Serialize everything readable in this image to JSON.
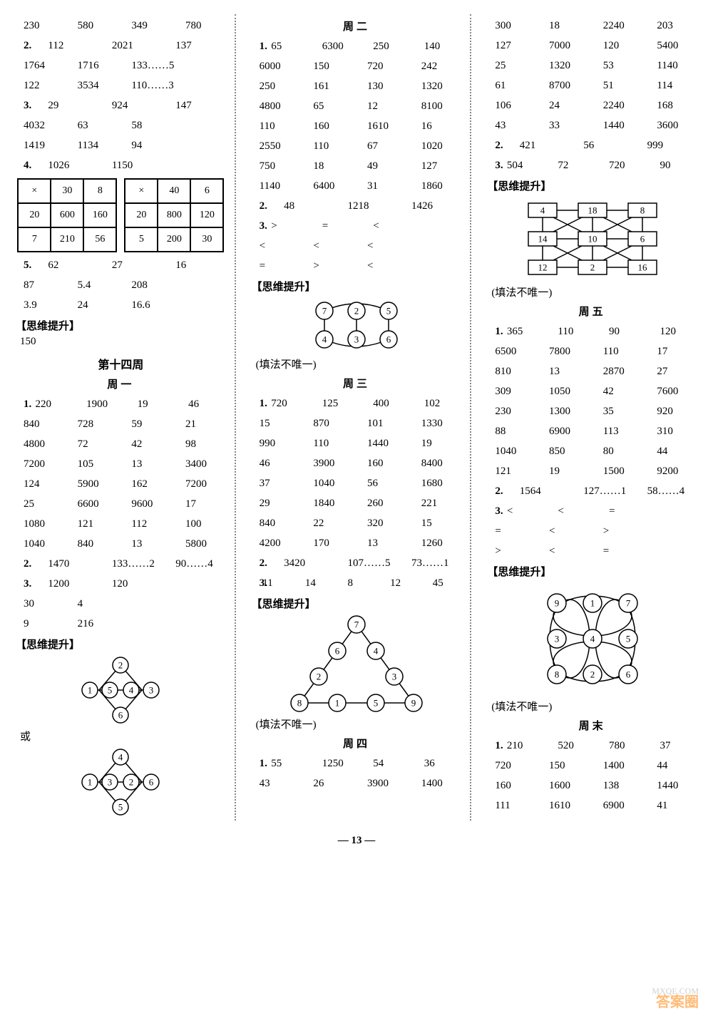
{
  "c1": {
    "r1": [
      "230",
      "580",
      "349",
      "780"
    ],
    "q2": "2.",
    "r2a": [
      "112",
      "2021",
      "137",
      ""
    ],
    "r2b": [
      "1764",
      "1716",
      "133……5",
      ""
    ],
    "r2c": [
      "122",
      "3534",
      "110……3",
      ""
    ],
    "q3": "3.",
    "r3a": [
      "29",
      "924",
      "147",
      ""
    ],
    "r3b": [
      "4032",
      "63",
      "58",
      ""
    ],
    "r3c": [
      "1419",
      "1134",
      "94",
      ""
    ],
    "q4": "4.",
    "r4": [
      "1026",
      "",
      "1150",
      ""
    ],
    "t1": [
      [
        "×",
        "30",
        "8"
      ],
      [
        "20",
        "600",
        "160"
      ],
      [
        "7",
        "210",
        "56"
      ]
    ],
    "t2": [
      [
        "×",
        "40",
        "6"
      ],
      [
        "20",
        "800",
        "120"
      ],
      [
        "5",
        "200",
        "30"
      ]
    ],
    "q5": "5.",
    "r5a": [
      "62",
      "27",
      "16",
      ""
    ],
    "r5b": [
      "87",
      "5.4",
      "208",
      ""
    ],
    "r5c": [
      "3.9",
      "24",
      "16.6",
      ""
    ],
    "brain": "【思维提升】",
    "brainv": "150",
    "week": "第十四周",
    "day1": "周一",
    "d1q1": "1.",
    "d1r": [
      [
        "220",
        "1900",
        "19",
        "46"
      ],
      [
        "840",
        "728",
        "59",
        "21"
      ],
      [
        "4800",
        "72",
        "42",
        "98"
      ],
      [
        "7200",
        "105",
        "13",
        "3400"
      ],
      [
        "124",
        "5900",
        "162",
        "7200"
      ],
      [
        "25",
        "6600",
        "9600",
        "17"
      ],
      [
        "1080",
        "121",
        "112",
        "100"
      ],
      [
        "1040",
        "840",
        "13",
        "5800"
      ]
    ],
    "d1q2": "2.",
    "d1r2": [
      "1470",
      "133……2",
      "90……4",
      ""
    ],
    "d1q3": "3.",
    "d1r3a": [
      "1200",
      "120",
      "",
      ""
    ],
    "d1r3b": [
      "30",
      "4",
      "",
      ""
    ],
    "d1r3c": [
      "9",
      "216",
      "",
      ""
    ],
    "or": "或",
    "fignote": "(填法不唯一)"
  },
  "c2": {
    "day2": "周二",
    "q1": "1.",
    "r1": [
      [
        "65",
        "6300",
        "250",
        "140"
      ],
      [
        "6000",
        "150",
        "720",
        "242"
      ],
      [
        "250",
        "161",
        "130",
        "1320"
      ],
      [
        "4800",
        "65",
        "12",
        "8100"
      ],
      [
        "110",
        "160",
        "1610",
        "16"
      ],
      [
        "2550",
        "110",
        "67",
        "1020"
      ],
      [
        "750",
        "18",
        "49",
        "127"
      ],
      [
        "1140",
        "6400",
        "31",
        "1860"
      ]
    ],
    "q2": "2.",
    "r2": [
      "48",
      "1218",
      "1426",
      ""
    ],
    "q3": "3.",
    "r3": [
      [
        ">",
        "=",
        "<",
        ""
      ],
      [
        "<",
        "<",
        "<",
        ""
      ],
      [
        "=",
        ">",
        "<",
        ""
      ]
    ],
    "brain": "【思维提升】",
    "fignote": "(填法不唯一)",
    "day3": "周三",
    "d3q1": "1.",
    "d3r1": [
      [
        "720",
        "125",
        "400",
        "102"
      ],
      [
        "15",
        "870",
        "101",
        "1330"
      ],
      [
        "990",
        "110",
        "1440",
        "19"
      ],
      [
        "46",
        "3900",
        "160",
        "8400"
      ],
      [
        "37",
        "1040",
        "56",
        "1680"
      ],
      [
        "29",
        "1840",
        "260",
        "221"
      ],
      [
        "840",
        "22",
        "320",
        "15"
      ],
      [
        "4200",
        "170",
        "13",
        "1260"
      ]
    ],
    "d3q2": "2.",
    "d3r2": [
      "3420",
      "107……5",
      "73……1",
      ""
    ],
    "d3q3": "3.",
    "d3r3": [
      "11",
      "14",
      "8",
      "12",
      "45"
    ],
    "day4": "周四",
    "d4q1": "1.",
    "d4r1": [
      [
        "55",
        "1250",
        "54",
        "36"
      ],
      [
        "43",
        "26",
        "3900",
        "1400"
      ]
    ]
  },
  "c3": {
    "r1": [
      [
        "300",
        "18",
        "2240",
        "203"
      ],
      [
        "127",
        "7000",
        "120",
        "5400"
      ],
      [
        "25",
        "1320",
        "53",
        "1140"
      ],
      [
        "61",
        "8700",
        "51",
        "114"
      ],
      [
        "106",
        "24",
        "2240",
        "168"
      ],
      [
        "43",
        "33",
        "1440",
        "3600"
      ]
    ],
    "q2": "2.",
    "r2": [
      "421",
      "56",
      "999",
      ""
    ],
    "q3": "3.",
    "r3": [
      "504",
      "72",
      "720",
      "90"
    ],
    "brain": "【思维提升】",
    "grid": [
      [
        "4",
        "18",
        "8"
      ],
      [
        "14",
        "10",
        "6"
      ],
      [
        "12",
        "2",
        "16"
      ]
    ],
    "fignote": "(填法不唯一)",
    "day5": "周五",
    "d5q1": "1.",
    "d5r1": [
      [
        "365",
        "110",
        "90",
        "120"
      ],
      [
        "6500",
        "7800",
        "110",
        "17"
      ],
      [
        "810",
        "13",
        "2870",
        "27"
      ],
      [
        "309",
        "1050",
        "42",
        "7600"
      ],
      [
        "230",
        "1300",
        "35",
        "920"
      ],
      [
        "88",
        "6900",
        "113",
        "310"
      ],
      [
        "1040",
        "850",
        "80",
        "44"
      ],
      [
        "121",
        "19",
        "1500",
        "9200"
      ]
    ],
    "d5q2": "2.",
    "d5r2": [
      "1564",
      "127……1",
      "58……4",
      ""
    ],
    "d5q3": "3.",
    "d5r3": [
      [
        "<",
        "<",
        "=",
        ""
      ],
      [
        "=",
        "<",
        ">",
        ""
      ],
      [
        ">",
        "<",
        "=",
        ""
      ]
    ],
    "fig9": [
      "9",
      "1",
      "7",
      "3",
      "4",
      "5",
      "8",
      "2",
      "6"
    ],
    "daye": "周末",
    "deq1": "1.",
    "der1": [
      [
        "210",
        "520",
        "780",
        "37"
      ],
      [
        "720",
        "150",
        "1400",
        "44"
      ],
      [
        "160",
        "1600",
        "138",
        "1440"
      ],
      [
        "111",
        "1610",
        "6900",
        "41"
      ]
    ]
  },
  "pagenum": "— 13 —",
  "watermark": "答案圈",
  "watermark2": "MXQE.COM"
}
